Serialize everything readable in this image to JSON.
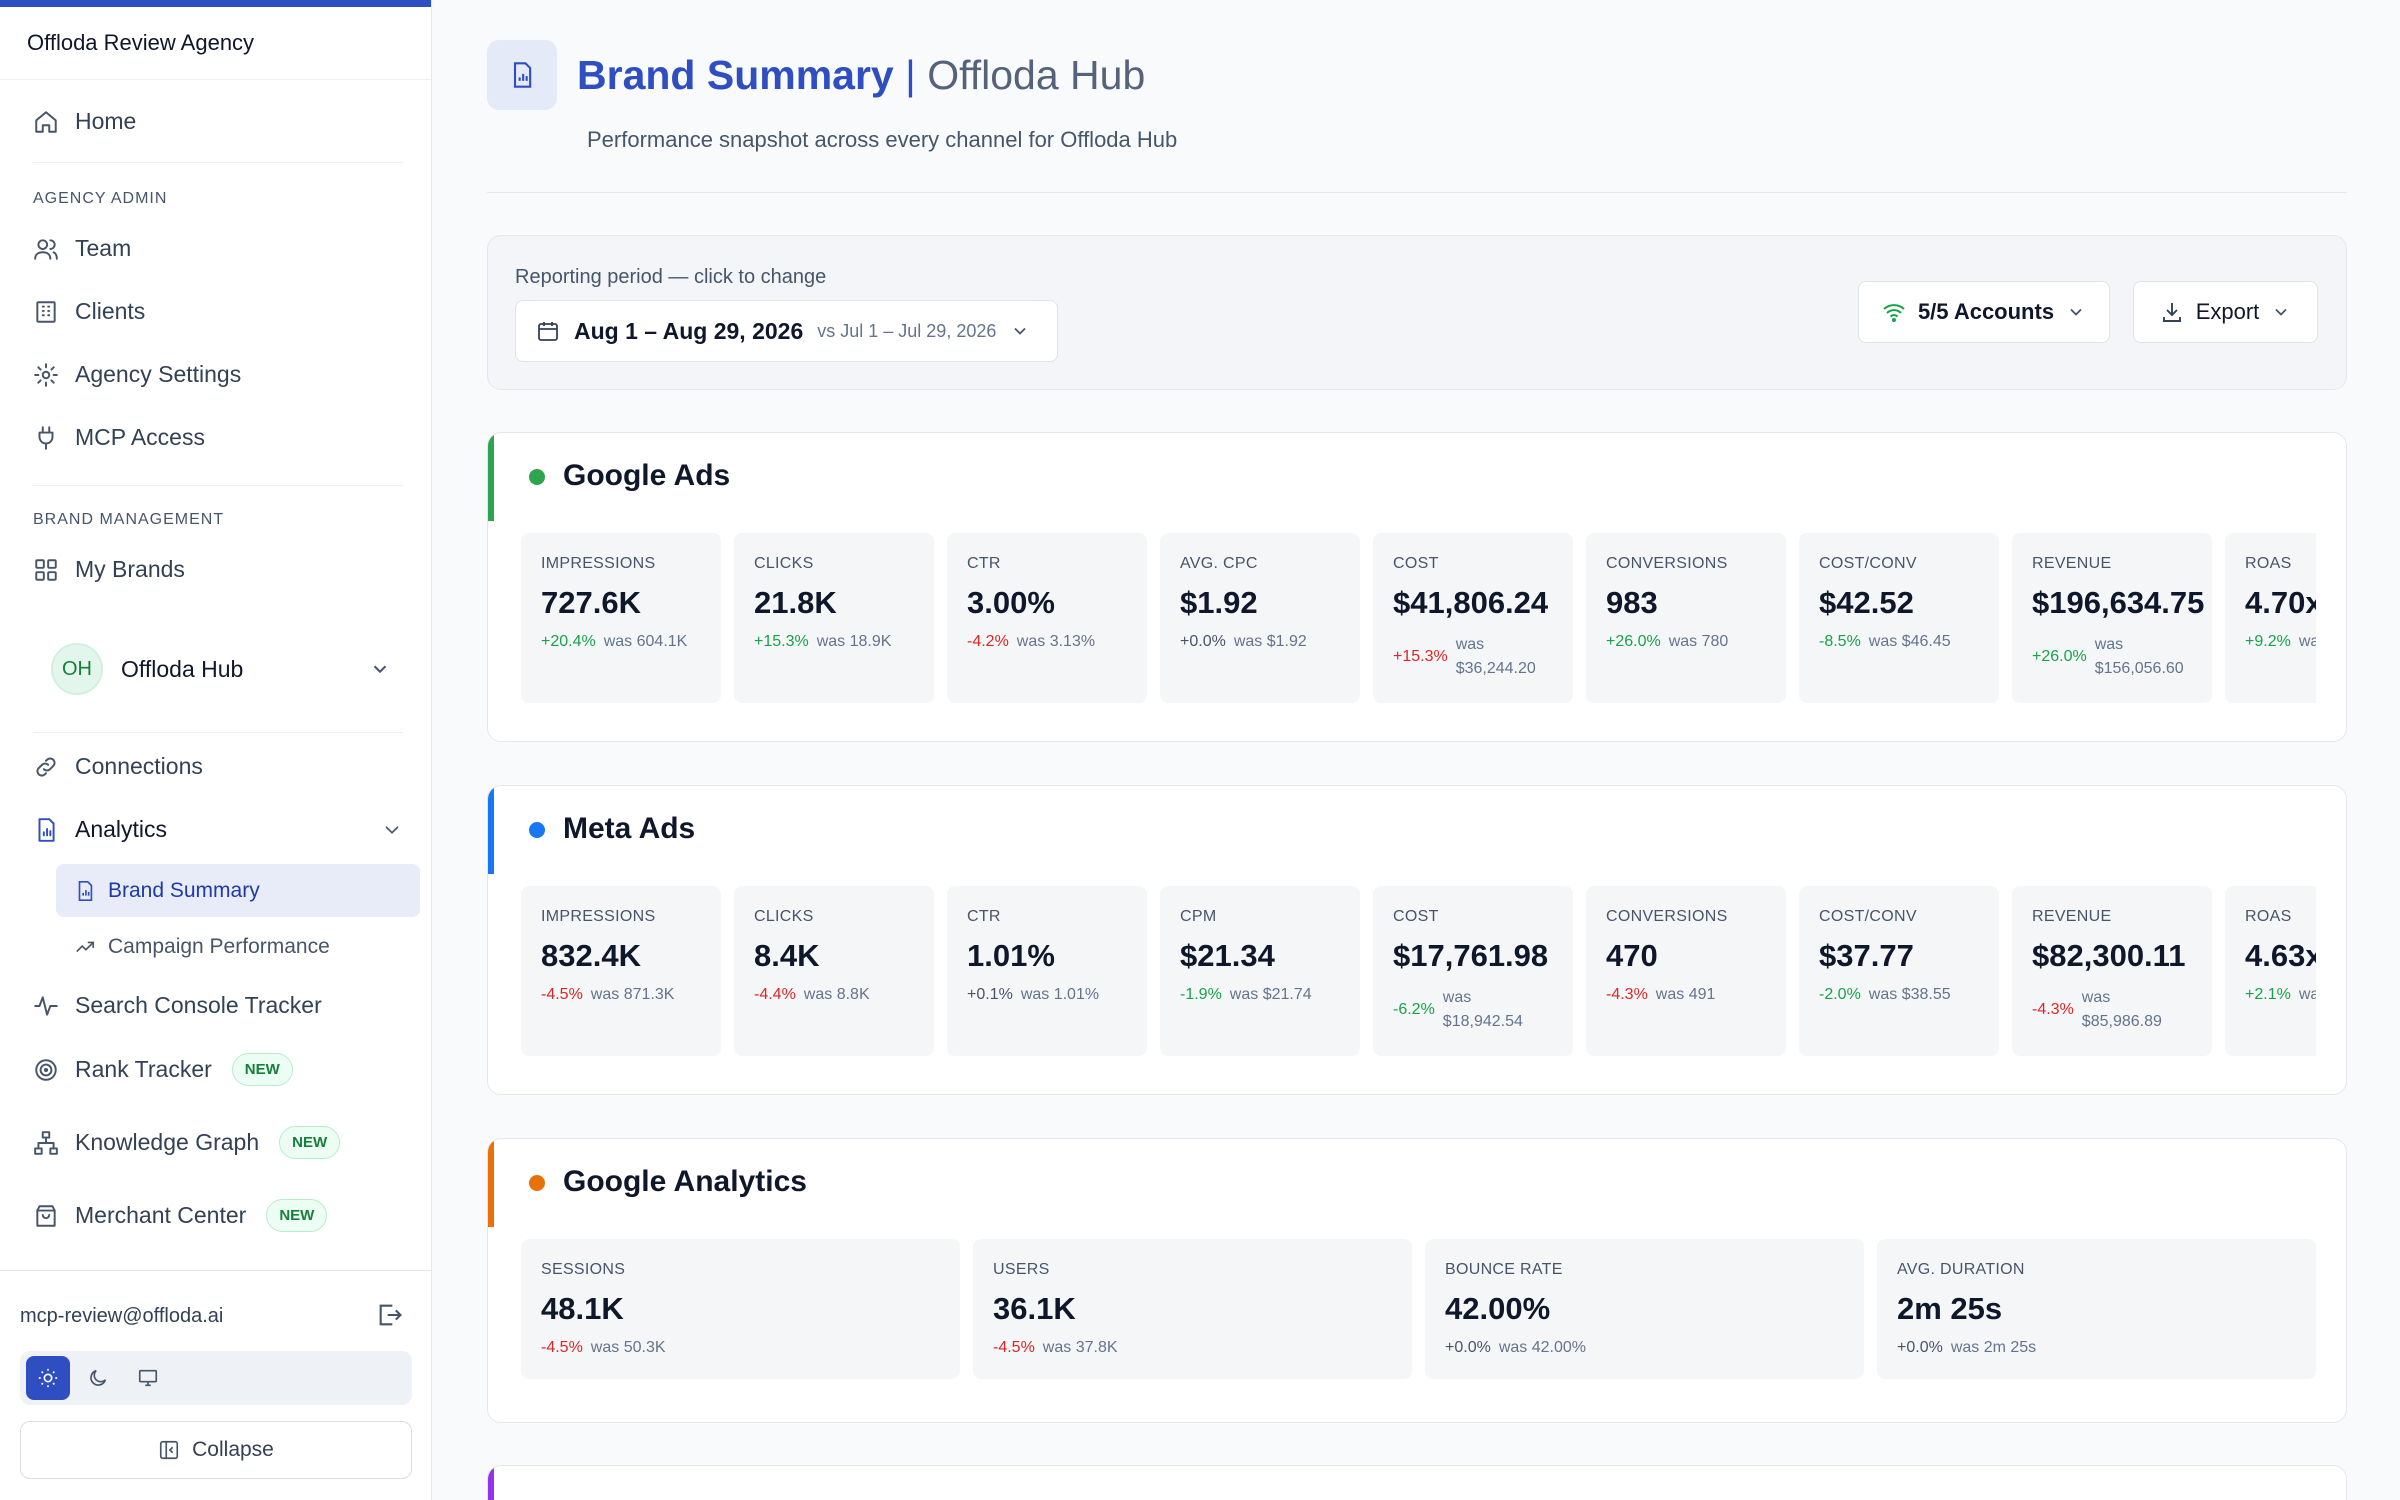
{
  "colors": {
    "accent": "#2f4ec2",
    "positive": "#16a34a",
    "negative": "#dc2626",
    "google_ads": "#2ea44f",
    "meta_ads": "#1877f2",
    "google_analytics": "#e8710a",
    "next_section": "#9333ea"
  },
  "sidebar": {
    "agency_name": "Offloda Review Agency",
    "home": "Home",
    "agency_admin_label": "AGENCY ADMIN",
    "team": "Team",
    "clients": "Clients",
    "agency_settings": "Agency Settings",
    "mcp_access": "MCP Access",
    "brand_management_label": "BRAND MANAGEMENT",
    "my_brands": "My Brands",
    "brand": {
      "initials": "OH",
      "name": "Offloda Hub"
    },
    "connections": "Connections",
    "analytics": "Analytics",
    "brand_summary": "Brand Summary",
    "campaign_performance": "Campaign Performance",
    "search_console_tracker": "Search Console Tracker",
    "rank_tracker": "Rank Tracker",
    "knowledge_graph": "Knowledge Graph",
    "merchant_center": "Merchant Center",
    "new_badge": "NEW",
    "user_email": "mcp-review@offloda.ai",
    "collapse": "Collapse"
  },
  "header": {
    "title": "Brand Summary",
    "separator": "|",
    "brand": "Offloda Hub",
    "subtitle": "Performance snapshot across every channel for Offloda Hub"
  },
  "period": {
    "label": "Reporting period — click to change",
    "range": "Aug 1 – Aug 29, 2026",
    "compare": "vs Jul 1 – Jul 29, 2026",
    "accounts": "5/5 Accounts",
    "export": "Export"
  },
  "sections": {
    "google_ads": {
      "title": "Google Ads",
      "metrics": [
        {
          "label": "IMPRESSIONS",
          "value": "727.6K",
          "change": "+20.4%",
          "was": "was 604.1K",
          "trend": "pos"
        },
        {
          "label": "CLICKS",
          "value": "21.8K",
          "change": "+15.3%",
          "was": "was 18.9K",
          "trend": "pos"
        },
        {
          "label": "CTR",
          "value": "3.00%",
          "change": "-4.2%",
          "was": "was 3.13%",
          "trend": "neg"
        },
        {
          "label": "AVG. CPC",
          "value": "$1.92",
          "change": "+0.0%",
          "was": "was $1.92",
          "trend": "neu"
        },
        {
          "label": "COST",
          "value": "$41,806.24",
          "change": "+15.3%",
          "was": "was $36,244.20",
          "trend": "neg"
        },
        {
          "label": "CONVERSIONS",
          "value": "983",
          "change": "+26.0%",
          "was": "was 780",
          "trend": "pos"
        },
        {
          "label": "COST/CONV",
          "value": "$42.52",
          "change": "-8.5%",
          "was": "was $46.45",
          "trend": "pos"
        },
        {
          "label": "REVENUE",
          "value": "$196,634.75",
          "change": "+26.0%",
          "was": "was $156,056.60",
          "trend": "pos"
        },
        {
          "label": "ROAS",
          "value": "4.70x",
          "change": "+9.2%",
          "was": "was",
          "trend": "pos"
        }
      ]
    },
    "meta_ads": {
      "title": "Meta Ads",
      "metrics": [
        {
          "label": "IMPRESSIONS",
          "value": "832.4K",
          "change": "-4.5%",
          "was": "was 871.3K",
          "trend": "neg"
        },
        {
          "label": "CLICKS",
          "value": "8.4K",
          "change": "-4.4%",
          "was": "was 8.8K",
          "trend": "neg"
        },
        {
          "label": "CTR",
          "value": "1.01%",
          "change": "+0.1%",
          "was": "was 1.01%",
          "trend": "neu"
        },
        {
          "label": "CPM",
          "value": "$21.34",
          "change": "-1.9%",
          "was": "was $21.74",
          "trend": "pos"
        },
        {
          "label": "COST",
          "value": "$17,761.98",
          "change": "-6.2%",
          "was": "was $18,942.54",
          "trend": "pos"
        },
        {
          "label": "CONVERSIONS",
          "value": "470",
          "change": "-4.3%",
          "was": "was 491",
          "trend": "neg"
        },
        {
          "label": "COST/CONV",
          "value": "$37.77",
          "change": "-2.0%",
          "was": "was $38.55",
          "trend": "pos"
        },
        {
          "label": "REVENUE",
          "value": "$82,300.11",
          "change": "-4.3%",
          "was": "was $85,986.89",
          "trend": "neg"
        },
        {
          "label": "ROAS",
          "value": "4.63x",
          "change": "+2.1%",
          "was": "was",
          "trend": "pos"
        }
      ]
    },
    "google_analytics": {
      "title": "Google Analytics",
      "metrics": [
        {
          "label": "SESSIONS",
          "value": "48.1K",
          "change": "-4.5%",
          "was": "was 50.3K",
          "trend": "neg"
        },
        {
          "label": "USERS",
          "value": "36.1K",
          "change": "-4.5%",
          "was": "was 37.8K",
          "trend": "neg"
        },
        {
          "label": "BOUNCE RATE",
          "value": "42.00%",
          "change": "+0.0%",
          "was": "was 42.00%",
          "trend": "neu"
        },
        {
          "label": "AVG. DURATION",
          "value": "2m 25s",
          "change": "+0.0%",
          "was": "was 2m 25s",
          "trend": "neu"
        }
      ]
    }
  }
}
